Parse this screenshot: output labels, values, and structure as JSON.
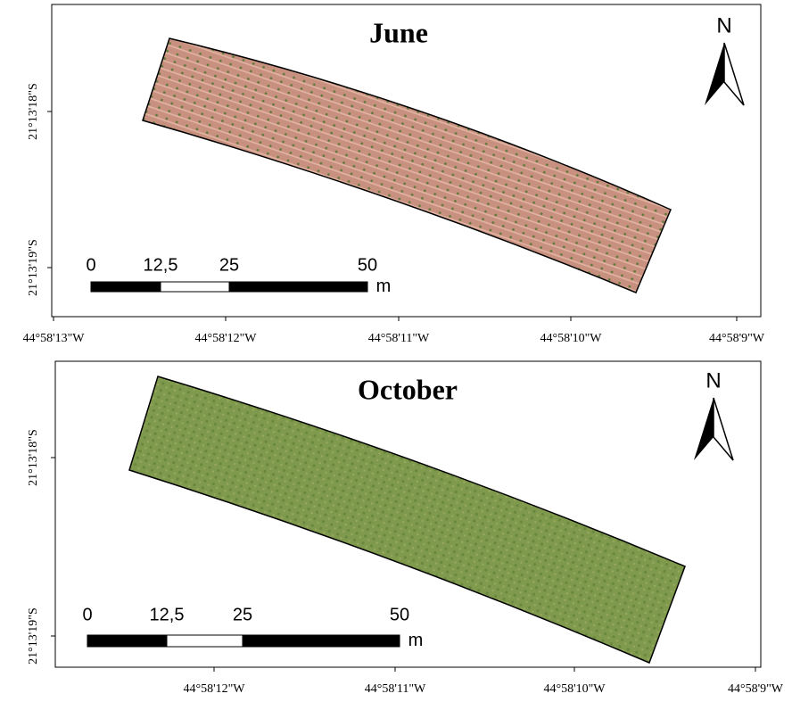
{
  "panels": [
    {
      "title": "June",
      "north": "N",
      "y_labels": [
        "21°13'18\"S",
        "21°13'19\"S"
      ],
      "x_labels": [
        "44°58'13\"W",
        "44°58'12\"W",
        "44°58'11\"W",
        "44°58'10\"W",
        "44°58'9\"W"
      ],
      "scale_bar": {
        "labels": [
          "0",
          "12,5",
          "25",
          "50"
        ],
        "unit": "m"
      }
    },
    {
      "title": "October",
      "north": "N",
      "y_labels": [
        "21°13'18\"S",
        "21°13'19\"S"
      ],
      "x_labels": [
        "44°58'12\"W",
        "44°58'11\"W",
        "44°58'10\"W",
        "44°58'9\"W"
      ],
      "scale_bar": {
        "labels": [
          "0",
          "12,5",
          "25",
          "50"
        ],
        "unit": "m"
      }
    }
  ]
}
